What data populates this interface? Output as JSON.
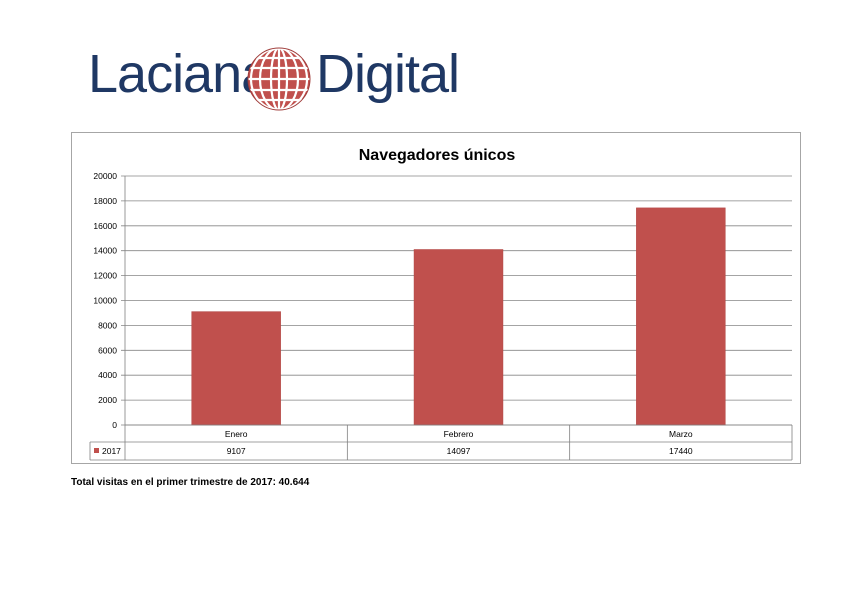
{
  "logo": {
    "brand_left": "Laciana",
    "brand_right": "Digital",
    "text_color": "#1f3864",
    "globe_color": "#c0504d"
  },
  "chart_data": {
    "type": "bar",
    "title": "Navegadores únicos",
    "categories": [
      "Enero",
      "Febrero",
      "Marzo"
    ],
    "series": [
      {
        "name": "2017",
        "values": [
          9107,
          14097,
          17440
        ],
        "color": "#c0504d"
      }
    ],
    "ylim": [
      0,
      20000
    ],
    "yticks": [
      0,
      2000,
      4000,
      6000,
      8000,
      10000,
      12000,
      14000,
      16000,
      18000,
      20000
    ],
    "grid": true,
    "data_table": true
  },
  "footer": {
    "summary": "Total visitas en el primer trimestre de 2017: 40.644"
  }
}
